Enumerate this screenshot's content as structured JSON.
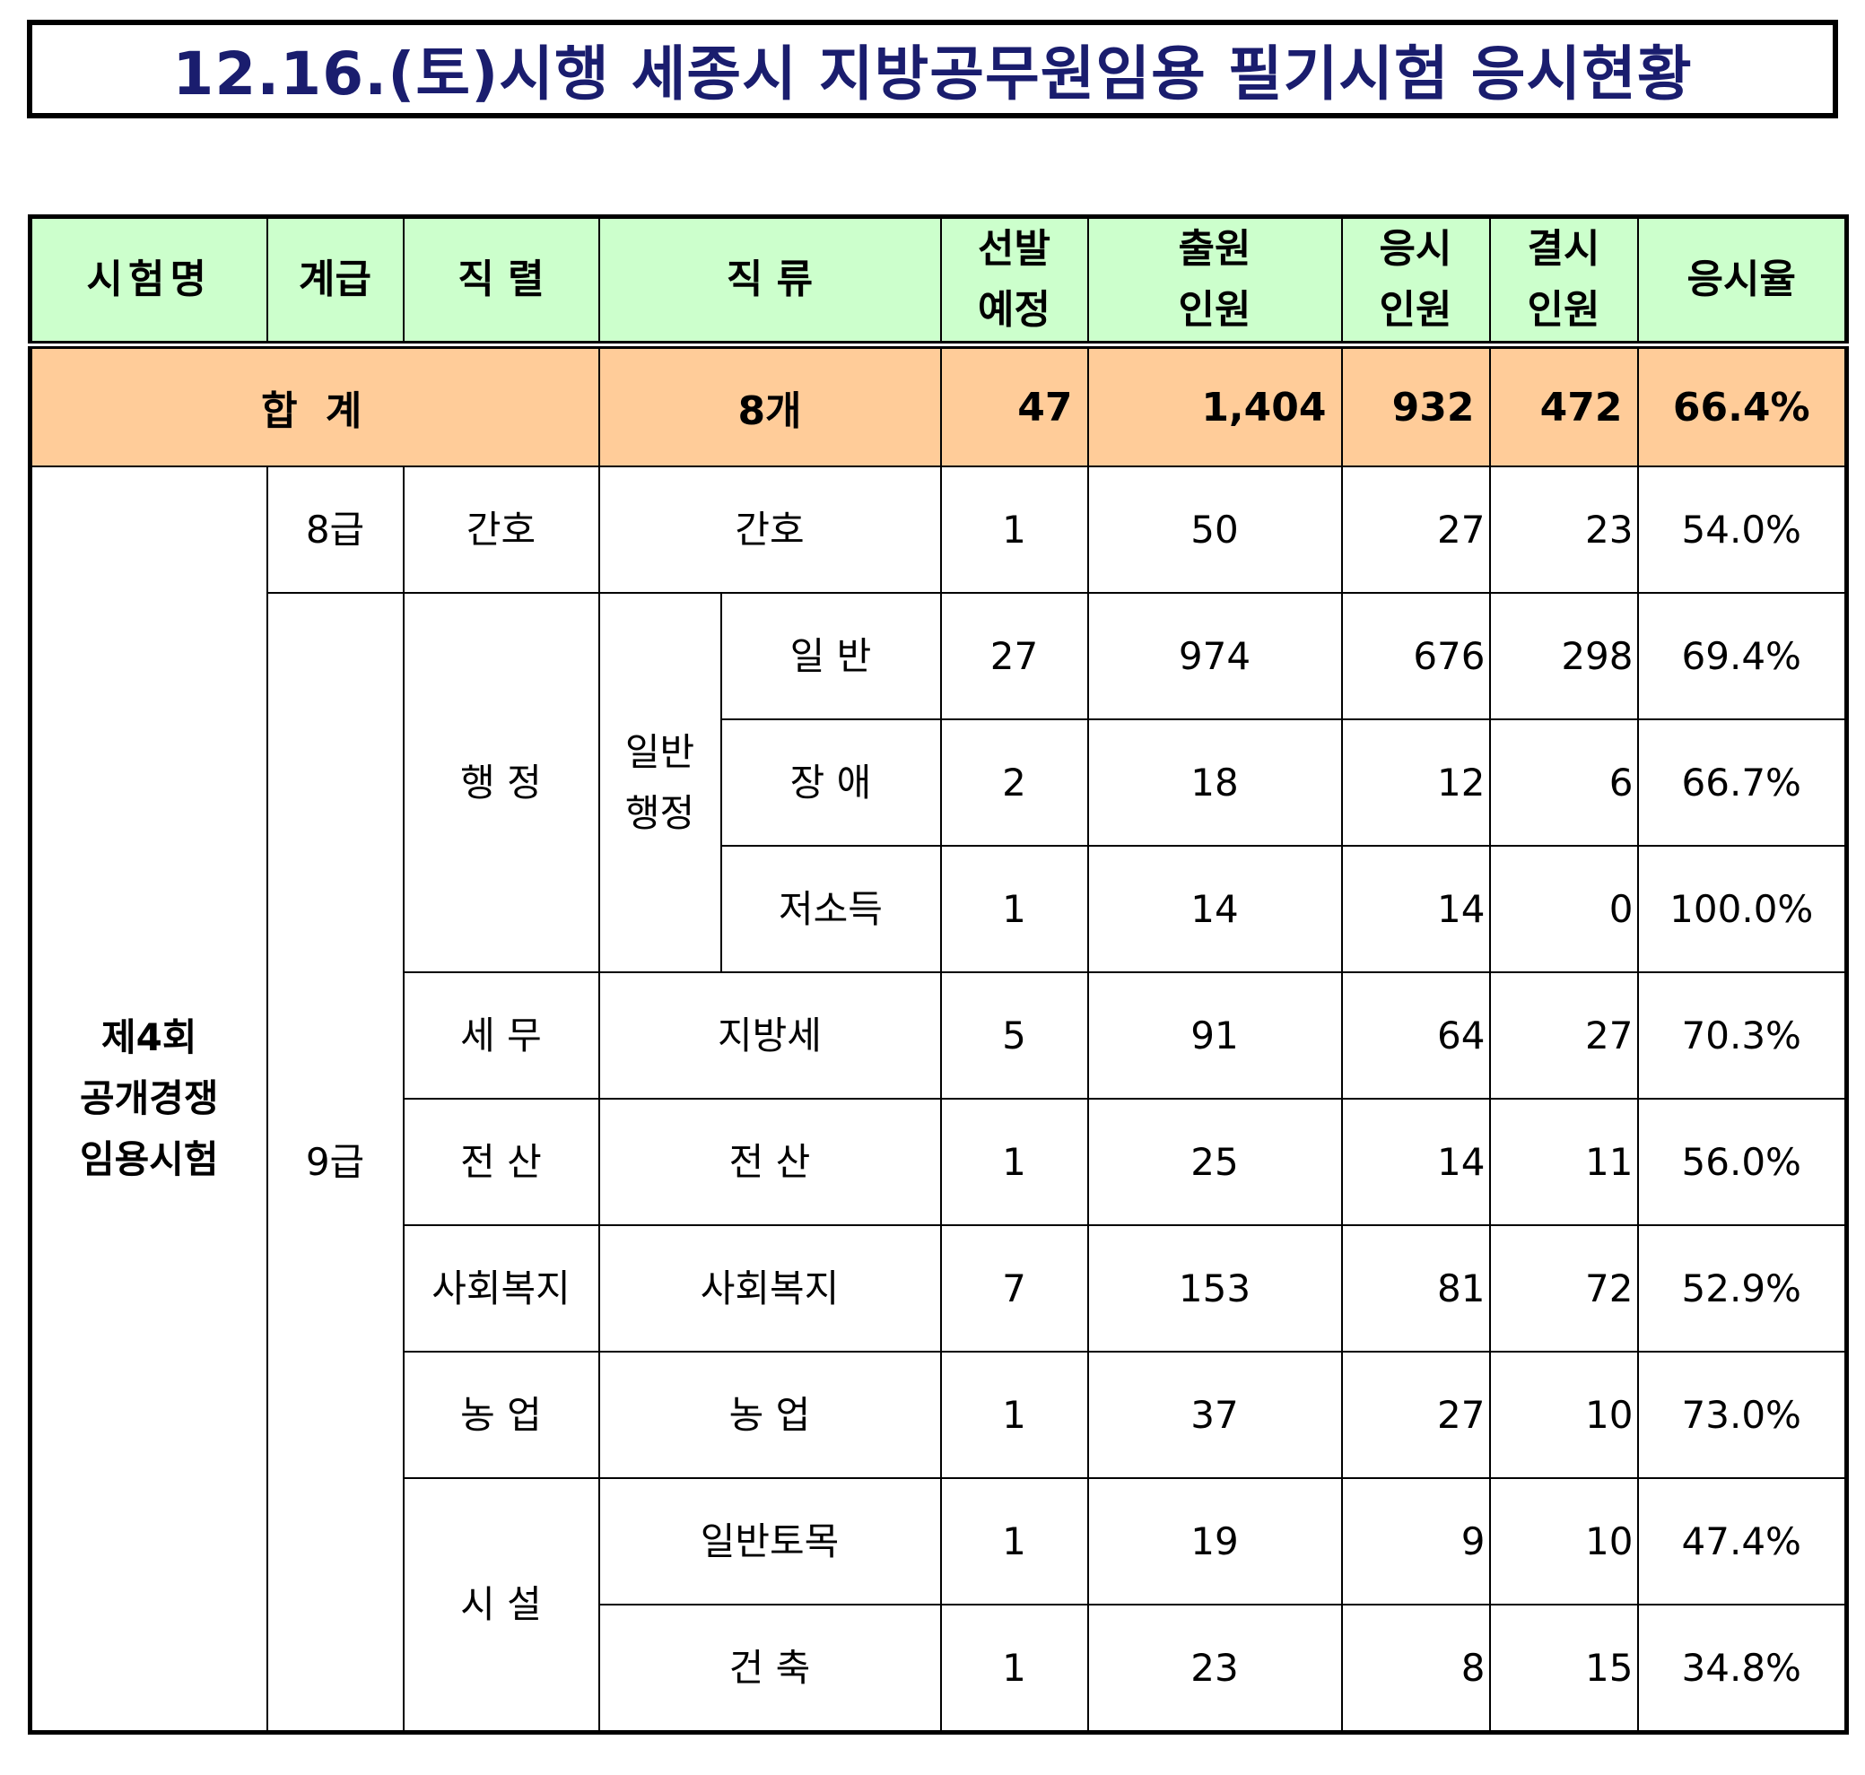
{
  "title": "12.16.(토)시행 세종시 지방공무원임용 필기시험 응시현황",
  "headers": {
    "exam": "시험명",
    "grade": "계급",
    "series": "직 렬",
    "category": "직 류",
    "planned": "선발\n예정",
    "applicants": "출원\n인원",
    "takers": "응시\n인원",
    "absentees": "결시\n인원",
    "rate": "응시율"
  },
  "total": {
    "label": "합 계",
    "count": "8개",
    "planned": "47",
    "applicants": "1,404",
    "takers": "932",
    "absentees": "472",
    "rate": "66.4%"
  },
  "exam_name": "제4회\n공개경쟁\n임용시험",
  "groups": {
    "grade8": "8급",
    "grade9": "9급",
    "haengjeong": "행 정",
    "ilban_haengjeong": "일반\n행정",
    "simu": "시 설"
  },
  "rows": [
    {
      "series": "간호",
      "category": "간호",
      "planned": "1",
      "applicants": "50",
      "takers": "27",
      "absentees": "23",
      "rate": "54.0%"
    },
    {
      "category": "일 반",
      "planned": "27",
      "applicants": "974",
      "takers": "676",
      "absentees": "298",
      "rate": "69.4%"
    },
    {
      "category": "장 애",
      "planned": "2",
      "applicants": "18",
      "takers": "12",
      "absentees": "6",
      "rate": "66.7%"
    },
    {
      "category": "저소득",
      "planned": "1",
      "applicants": "14",
      "takers": "14",
      "absentees": "0",
      "rate": "100.0%"
    },
    {
      "series": "세 무",
      "category": "지방세",
      "planned": "5",
      "applicants": "91",
      "takers": "64",
      "absentees": "27",
      "rate": "70.3%"
    },
    {
      "series": "전 산",
      "category": "전 산",
      "planned": "1",
      "applicants": "25",
      "takers": "14",
      "absentees": "11",
      "rate": "56.0%"
    },
    {
      "series": "사회복지",
      "category": "사회복지",
      "planned": "7",
      "applicants": "153",
      "takers": "81",
      "absentees": "72",
      "rate": "52.9%"
    },
    {
      "series": "농 업",
      "category": "농 업",
      "planned": "1",
      "applicants": "37",
      "takers": "27",
      "absentees": "10",
      "rate": "73.0%"
    },
    {
      "category": "일반토목",
      "planned": "1",
      "applicants": "19",
      "takers": "9",
      "absentees": "10",
      "rate": "47.4%"
    },
    {
      "category": "건 축",
      "planned": "1",
      "applicants": "23",
      "takers": "8",
      "absentees": "15",
      "rate": "34.8%"
    }
  ]
}
